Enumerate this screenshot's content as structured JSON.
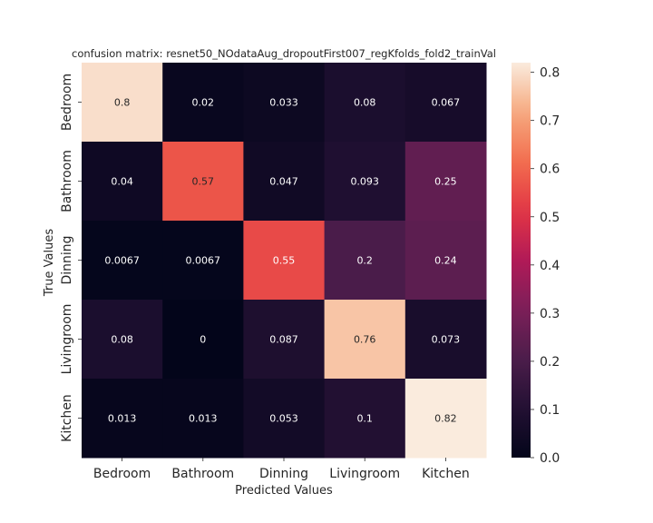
{
  "chart_data": {
    "type": "heatmap",
    "title": "confusion matrix: resnet50_NOdataAug_dropoutFirst007_regKfolds_fold2_trainVal",
    "xlabel": "Predicted Values",
    "ylabel": "True Values",
    "x_categories": [
      "Bedroom",
      "Bathroom",
      "Dinning",
      "Livingroom",
      "Kitchen"
    ],
    "y_categories": [
      "Bedroom",
      "Bathroom",
      "Dinning",
      "Livingroom",
      "Kitchen"
    ],
    "values": [
      [
        0.8,
        0.02,
        0.033,
        0.08,
        0.067
      ],
      [
        0.04,
        0.57,
        0.047,
        0.093,
        0.25
      ],
      [
        0.0067,
        0.0067,
        0.55,
        0.2,
        0.24
      ],
      [
        0.08,
        0,
        0.087,
        0.76,
        0.073
      ],
      [
        0.013,
        0.013,
        0.053,
        0.1,
        0.82
      ]
    ],
    "colorbar": {
      "range": [
        0,
        0.82
      ],
      "ticks": [
        "0.0",
        "0.1",
        "0.2",
        "0.3",
        "0.4",
        "0.5",
        "0.6",
        "0.7",
        "0.8"
      ],
      "colormap": "rocket"
    },
    "grid": false
  }
}
